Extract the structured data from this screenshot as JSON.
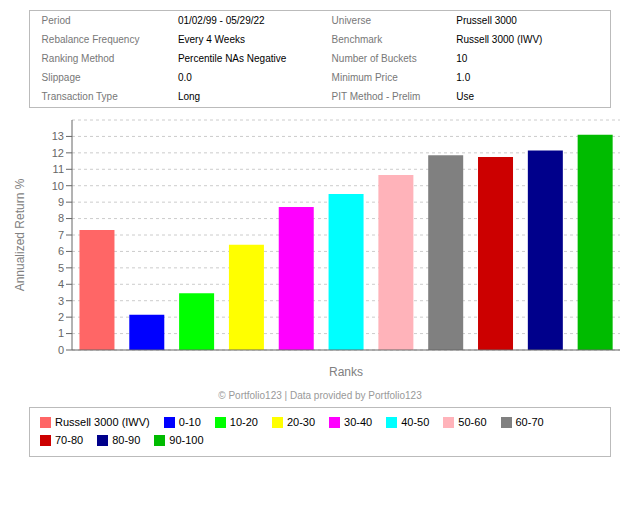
{
  "chart_data": {
    "type": "bar",
    "xlabel": "Ranks",
    "ylabel": "Annualized Return %",
    "categories": [
      "Russell 3000 (IWV)",
      "0-10",
      "10-20",
      "20-30",
      "30-40",
      "40-50",
      "50-60",
      "60-70",
      "70-80",
      "80-90",
      "90-100"
    ],
    "values": [
      7.3,
      2.15,
      3.45,
      6.4,
      8.7,
      9.5,
      10.65,
      11.85,
      11.75,
      12.15,
      13.1
    ],
    "colors": [
      "#FF6666",
      "#0000FF",
      "#00FF00",
      "#FFFF00",
      "#FF00FF",
      "#00FFFF",
      "#FFB3BA",
      "#808080",
      "#CC0000",
      "#00008B",
      "#00BB00"
    ],
    "ylim": [
      0,
      14
    ],
    "yticks": [
      0,
      1,
      2,
      3,
      4,
      5,
      6,
      7,
      8,
      9,
      10,
      11,
      12,
      13
    ],
    "grid": true,
    "legend": "bottom",
    "tick_labels": "y",
    "annotations": [
      [
        "Period",
        "01/02/99 - 05/29/22",
        "Universe",
        "Prussell 3000"
      ],
      [
        "Rebalance Frequency",
        "Every 4 Weeks",
        "Benchmark",
        "Russell 3000 (IWV)"
      ],
      [
        "Ranking Method",
        "Percentile NAs Negative",
        "Number of Buckets",
        "10"
      ],
      [
        "Slippage",
        "0.0",
        "Minimum Price",
        "1.0"
      ],
      [
        "Transaction Type",
        "Long",
        "PIT Method - Prelim",
        "Use"
      ],
      [
        "© Portfolio123 | Data provided by Portfolio123"
      ]
    ]
  }
}
